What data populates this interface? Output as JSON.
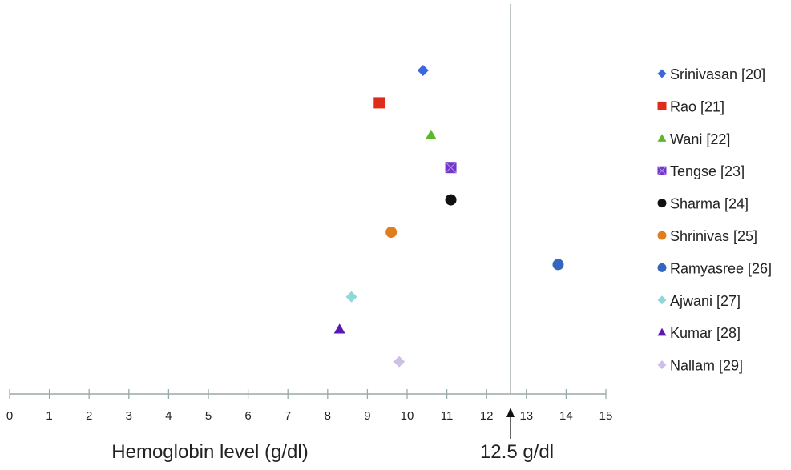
{
  "chart_data": {
    "type": "scatter",
    "title": "",
    "xlabel": "Hemoglobin level (g/dl)",
    "ylabel": "",
    "xlim": [
      0,
      15
    ],
    "xticks": [
      "0",
      "1",
      "2",
      "3",
      "4",
      "5",
      "6",
      "7",
      "8",
      "9",
      "10",
      "11",
      "12",
      "13",
      "14",
      "15"
    ],
    "reference_line": {
      "value": 12.5,
      "label": "12.5 g/dl"
    },
    "grid": false,
    "legend_position": "right",
    "series": [
      {
        "name": "Srinivasan  [20]",
        "x": 10.4,
        "marker": "diamond",
        "color": "#3a66e0"
      },
      {
        "name": "Rao  [21]",
        "x": 9.3,
        "marker": "square",
        "color": "#e02a1a"
      },
      {
        "name": "Wani  [22]",
        "x": 10.6,
        "marker": "triangle",
        "color": "#5cb82a"
      },
      {
        "name": "Tengse  [23]",
        "x": 11.1,
        "marker": "x-square",
        "color": "#7436c8"
      },
      {
        "name": "Sharma  [24]",
        "x": 11.1,
        "marker": "circle",
        "color": "#111111"
      },
      {
        "name": "Shrinivas  [25]",
        "x": 9.6,
        "marker": "circle",
        "color": "#e07e1e"
      },
      {
        "name": "Ramyasree  [26]",
        "x": 13.8,
        "marker": "circle",
        "color": "#3466c0"
      },
      {
        "name": "Ajwani  [27]",
        "x": 8.6,
        "marker": "diamond",
        "color": "#8ed8dc"
      },
      {
        "name": "Kumar  [28]",
        "x": 8.3,
        "marker": "triangle",
        "color": "#5a18b0"
      },
      {
        "name": "Nallam  [29]",
        "x": 9.8,
        "marker": "diamond",
        "color": "#cdbfe8"
      }
    ]
  }
}
